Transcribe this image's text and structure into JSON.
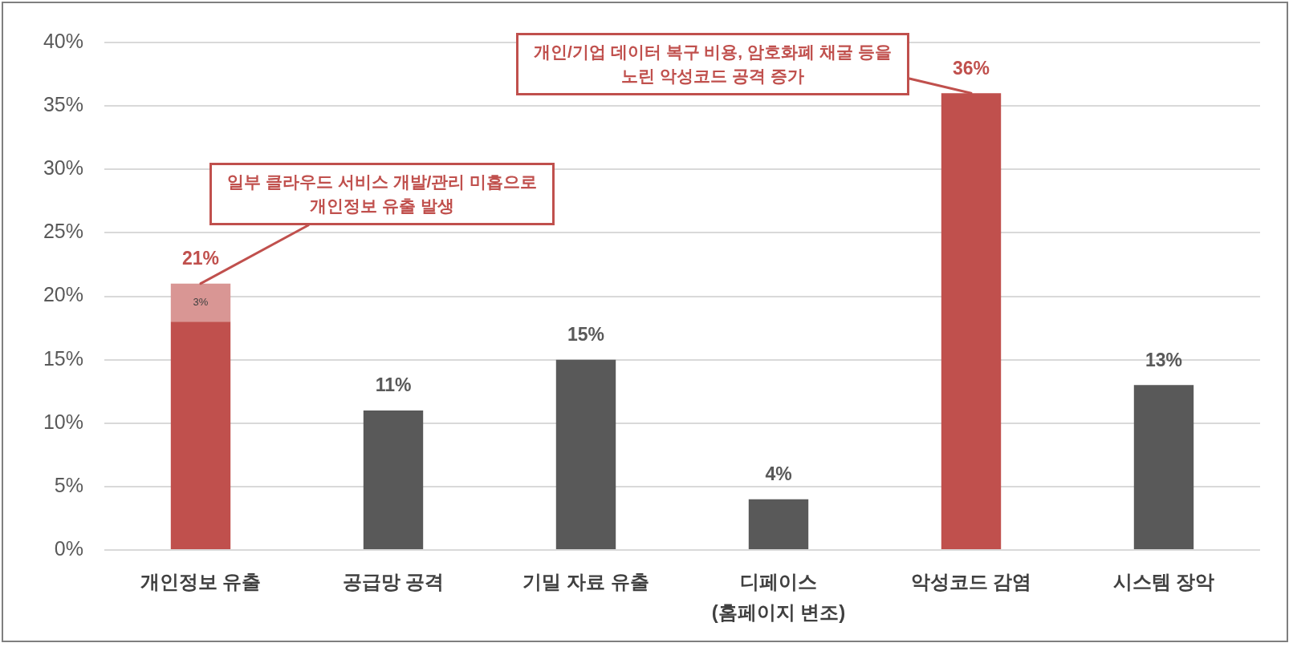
{
  "chart_data": {
    "type": "bar",
    "stacked": true,
    "categories": [
      "개인정보 유출",
      "공급망 공격",
      "기밀 자료 유출",
      "디페이스\n(홈페이지 변조)",
      "악성코드 감염",
      "시스템 장악"
    ],
    "series": [
      {
        "colors": [
          "#c0504d",
          "#595959",
          "#595959",
          "#595959",
          "#c0504d",
          "#595959"
        ],
        "values": [
          18,
          11,
          15,
          4,
          36,
          13
        ],
        "value_labels": [
          null,
          "11%",
          "15%",
          "4%",
          "36%",
          "13%"
        ]
      },
      {
        "color": "#d99694",
        "values": [
          3,
          null,
          null,
          null,
          null,
          null
        ],
        "value_labels": [
          "3%",
          null,
          null,
          null,
          null,
          null
        ]
      }
    ],
    "totals": [
      "21%",
      null,
      null,
      null,
      null,
      null
    ],
    "ylim": [
      0,
      40
    ],
    "yticks": [
      {
        "value": 0,
        "label": "0%"
      },
      {
        "value": 5,
        "label": "5%"
      },
      {
        "value": 10,
        "label": "10%"
      },
      {
        "value": 15,
        "label": "15%"
      },
      {
        "value": 20,
        "label": "20%"
      },
      {
        "value": 25,
        "label": "25%"
      },
      {
        "value": 30,
        "label": "30%"
      },
      {
        "value": 35,
        "label": "35%"
      },
      {
        "value": 40,
        "label": "40%"
      }
    ],
    "grid": "y",
    "annotations": [
      {
        "text": "일부 클라우드 서비스 개발/관리 미흡으로\n개인정보 유출 발생",
        "x": "개인정보 유출",
        "y": 21
      },
      {
        "text": "개인/기업 데이터 복구 비용, 암호화폐 채굴 등을\n노린 악성코드 공격 증가",
        "x": "악성코드 감염",
        "y": 36
      }
    ]
  }
}
